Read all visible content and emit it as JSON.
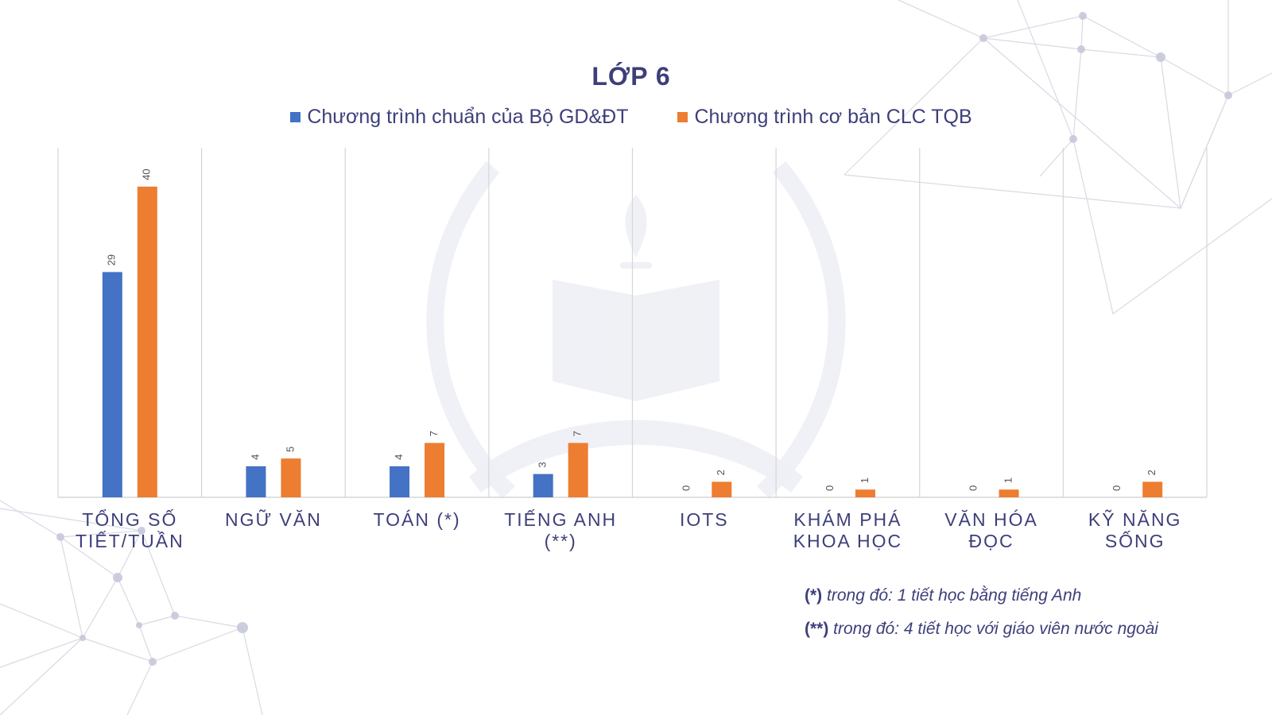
{
  "theme": {
    "text_color": "#3d3f7a",
    "axis_color": "#d6d6d6",
    "series_colors": [
      "#4472c4",
      "#ed7d31"
    ]
  },
  "chart_data": {
    "type": "bar",
    "title": "LỚP 6",
    "categories": [
      [
        "TỔNG SỐ",
        "TIẾT/TUẦN"
      ],
      [
        "NGỮ VĂN"
      ],
      [
        "TOÁN (*)"
      ],
      [
        "TIẾNG ANH",
        "(**)"
      ],
      [
        "IOTS"
      ],
      [
        "KHÁM PHÁ",
        "KHOA HỌC"
      ],
      [
        "VĂN HÓA",
        "ĐỌC"
      ],
      [
        "KỸ NĂNG",
        "SỐNG"
      ]
    ],
    "series": [
      {
        "name": "Chương trình chuẩn của Bộ GD&ĐT",
        "values": [
          29,
          4,
          4,
          3,
          0,
          0,
          0,
          0
        ]
      },
      {
        "name": "Chương trình cơ bản CLC TQB",
        "values": [
          40,
          5,
          7,
          7,
          2,
          1,
          1,
          2
        ]
      }
    ],
    "ylim": [
      0,
      45
    ],
    "grid": "vertical separators",
    "legend": "top-center",
    "data_labels": "rotated above bars"
  },
  "notes": [
    {
      "marker": "(*)",
      "text": " trong đó: 1 tiết học bằng tiếng Anh"
    },
    {
      "marker": "(**)",
      "text": " trong đó: 4 tiết học với giáo viên nước ngoài"
    }
  ]
}
